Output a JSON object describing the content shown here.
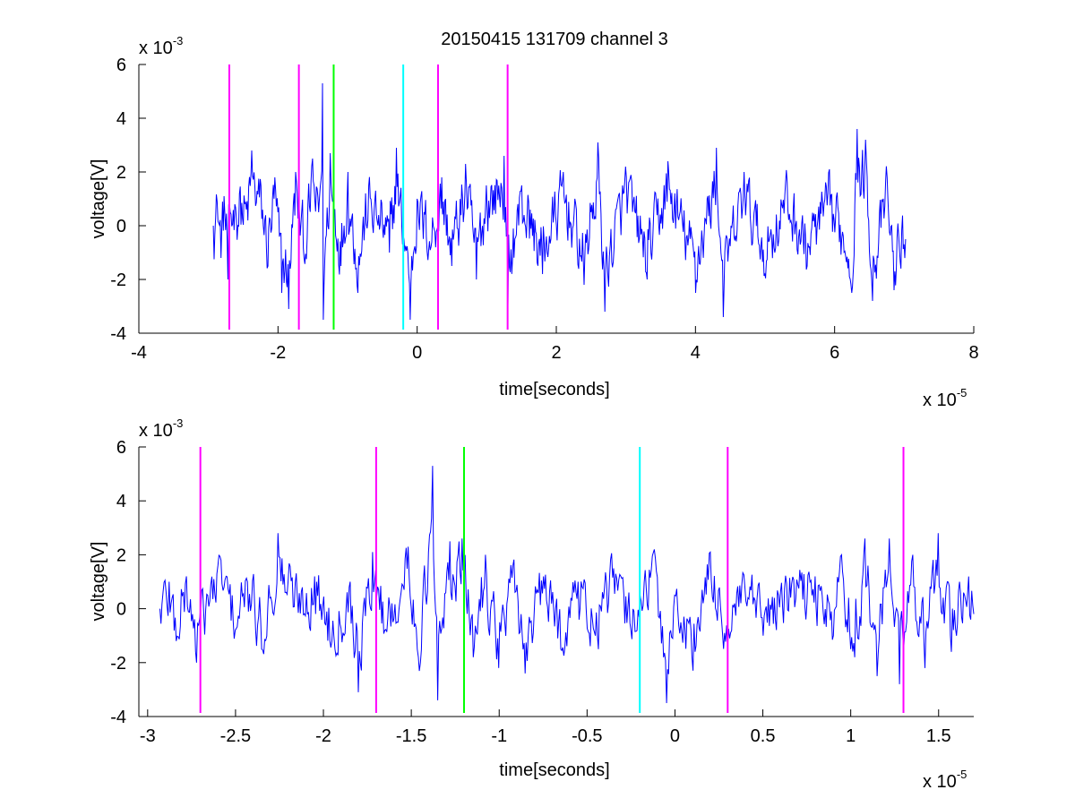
{
  "title": "20150415 131709 channel 3",
  "chart_data": [
    {
      "type": "line",
      "xlabel": "time[seconds]",
      "ylabel": "voltage[V]",
      "xlim": [
        -4,
        8
      ],
      "ylim": [
        -4,
        6
      ],
      "x_multiplier": "x 10",
      "x_exponent": "-5",
      "y_multiplier": "x 10",
      "y_exponent": "-3",
      "xticks": [
        -4,
        -2,
        0,
        2,
        4,
        6,
        8
      ],
      "xtick_labels": [
        "-4",
        "-2",
        "0",
        "2",
        "4",
        "6",
        "8"
      ],
      "yticks": [
        -4,
        -2,
        0,
        2,
        4,
        6
      ],
      "ytick_labels": [
        "-4",
        "-2",
        "0",
        "2",
        "4",
        "6"
      ],
      "series_color": "#0000ff",
      "series_x_range": [
        -2.93,
        7.02
      ],
      "series_keypoints": [
        [
          -2.93,
          0.0
        ],
        [
          -2.87,
          0.9
        ],
        [
          -2.82,
          -1.2
        ],
        [
          -2.77,
          1.1
        ],
        [
          -2.72,
          -2.0
        ],
        [
          -2.69,
          0.5
        ],
        [
          -2.62,
          0.8
        ],
        [
          -2.55,
          1.2
        ],
        [
          -2.45,
          0.6
        ],
        [
          -2.38,
          2.8
        ],
        [
          -2.25,
          1.5
        ],
        [
          -2.15,
          -1.5
        ],
        [
          -2.05,
          1.8
        ],
        [
          -1.95,
          -2.5
        ],
        [
          -1.85,
          -3.1
        ],
        [
          -1.75,
          2.0
        ],
        [
          -1.62,
          -1.2
        ],
        [
          -1.5,
          2.5
        ],
        [
          -1.42,
          0.5
        ],
        [
          -1.36,
          5.3
        ],
        [
          -1.35,
          -3.5
        ],
        [
          -1.25,
          2.7
        ],
        [
          -1.1,
          -1.5
        ],
        [
          -1.0,
          2.0
        ],
        [
          -0.85,
          -2.5
        ],
        [
          -0.7,
          1.5
        ],
        [
          -0.55,
          0.4
        ],
        [
          -0.4,
          -1.0
        ],
        [
          -0.3,
          2.9
        ],
        [
          -0.1,
          -3.5
        ],
        [
          0.0,
          1.0
        ],
        [
          0.2,
          -0.8
        ],
        [
          0.35,
          1.8
        ],
        [
          0.5,
          -1.5
        ],
        [
          0.7,
          2.3
        ],
        [
          0.85,
          -2.0
        ],
        [
          1.0,
          1.5
        ],
        [
          1.25,
          2.6
        ],
        [
          1.3,
          -3.0
        ],
        [
          1.5,
          1.5
        ],
        [
          1.8,
          -1.8
        ],
        [
          2.1,
          2.0
        ],
        [
          2.4,
          -2.2
        ],
        [
          2.6,
          3.1
        ],
        [
          2.7,
          -3.2
        ],
        [
          3.0,
          2.2
        ],
        [
          3.3,
          -2.0
        ],
        [
          3.6,
          2.4
        ],
        [
          4.0,
          -2.5
        ],
        [
          4.3,
          2.9
        ],
        [
          4.4,
          -3.4
        ],
        [
          4.7,
          2.0
        ],
        [
          5.0,
          -1.8
        ],
        [
          5.3,
          1.6
        ],
        [
          5.6,
          -1.5
        ],
        [
          5.9,
          1.2
        ],
        [
          6.1,
          -0.5
        ],
        [
          6.25,
          -2.5
        ],
        [
          6.32,
          3.6
        ],
        [
          6.45,
          3.2
        ],
        [
          6.55,
          -2.8
        ],
        [
          6.75,
          1.8
        ],
        [
          6.85,
          -2.4
        ],
        [
          7.02,
          -0.5
        ]
      ],
      "markers": [
        {
          "x": -2.7,
          "color": "#ff00ff"
        },
        {
          "x": -1.7,
          "color": "#ff00ff"
        },
        {
          "x": -1.2,
          "color": "#00ff00"
        },
        {
          "x": -0.2,
          "color": "#00ffff"
        },
        {
          "x": 0.3,
          "color": "#ff00ff"
        },
        {
          "x": 1.3,
          "color": "#ff00ff"
        }
      ]
    },
    {
      "type": "line",
      "xlabel": "time[seconds]",
      "ylabel": "voltage[V]",
      "xlim": [
        -3.05,
        1.7
      ],
      "ylim": [
        -4,
        6
      ],
      "x_multiplier": "x 10",
      "x_exponent": "-5",
      "y_multiplier": "x 10",
      "y_exponent": "-3",
      "xticks": [
        -3,
        -2.5,
        -2,
        -1.5,
        -1,
        -0.5,
        0,
        0.5,
        1,
        1.5
      ],
      "xtick_labels": [
        "-3",
        "-2.5",
        "-2",
        "-1.5",
        "-1",
        "-0.5",
        "0",
        "0.5",
        "1",
        "1.5"
      ],
      "yticks": [
        -4,
        -2,
        0,
        2,
        4,
        6
      ],
      "ytick_labels": [
        "-4",
        "-2",
        "0",
        "2",
        "4",
        "6"
      ],
      "series_color": "#0000ff",
      "series_x_range": [
        -2.93,
        1.7
      ],
      "series_keypoints": [
        [
          -2.93,
          0.0
        ],
        [
          -2.88,
          1.0
        ],
        [
          -2.84,
          -1.2
        ],
        [
          -2.78,
          1.2
        ],
        [
          -2.72,
          -2.0
        ],
        [
          -2.66,
          0.5
        ],
        [
          -2.58,
          1.8
        ],
        [
          -2.5,
          -0.8
        ],
        [
          -2.43,
          1.0
        ],
        [
          -2.35,
          -1.5
        ],
        [
          -2.26,
          2.8
        ],
        [
          -2.15,
          0.5
        ],
        [
          -2.05,
          1.2
        ],
        [
          -1.95,
          -1.2
        ],
        [
          -1.85,
          1.0
        ],
        [
          -1.8,
          -3.1
        ],
        [
          -1.72,
          2.1
        ],
        [
          -1.65,
          -0.8
        ],
        [
          -1.52,
          2.3
        ],
        [
          -1.45,
          -2.0
        ],
        [
          -1.38,
          5.3
        ],
        [
          -1.35,
          -3.4
        ],
        [
          -1.28,
          2.5
        ],
        [
          -1.21,
          2.6
        ],
        [
          -1.15,
          -1.8
        ],
        [
          -1.08,
          2.0
        ],
        [
          -1.0,
          -2.2
        ],
        [
          -0.92,
          1.6
        ],
        [
          -0.85,
          -2.4
        ],
        [
          -0.75,
          1.2
        ],
        [
          -0.65,
          -1.5
        ],
        [
          -0.55,
          1.0
        ],
        [
          -0.45,
          -1.0
        ],
        [
          -0.35,
          1.5
        ],
        [
          -0.25,
          -0.8
        ],
        [
          -0.2,
          0.5
        ],
        [
          -0.12,
          2.2
        ],
        [
          -0.05,
          -3.5
        ],
        [
          0.0,
          0.5
        ],
        [
          0.1,
          -2.3
        ],
        [
          0.2,
          2.1
        ],
        [
          0.3,
          -1.4
        ],
        [
          0.4,
          0.8
        ],
        [
          0.5,
          -1.0
        ],
        [
          0.6,
          0.6
        ],
        [
          0.7,
          0.9
        ],
        [
          0.8,
          1.2
        ],
        [
          0.9,
          -1.0
        ],
        [
          0.95,
          2.0
        ],
        [
          1.02,
          -1.8
        ],
        [
          1.08,
          2.6
        ],
        [
          1.15,
          -2.5
        ],
        [
          1.22,
          2.6
        ],
        [
          1.28,
          -2.8
        ],
        [
          1.35,
          2.0
        ],
        [
          1.42,
          -2.2
        ],
        [
          1.5,
          2.8
        ],
        [
          1.57,
          -1.6
        ],
        [
          1.62,
          1.0
        ],
        [
          1.7,
          -0.2
        ]
      ],
      "markers": [
        {
          "x": -2.7,
          "color": "#ff00ff"
        },
        {
          "x": -1.7,
          "color": "#ff00ff"
        },
        {
          "x": -1.2,
          "color": "#00ff00"
        },
        {
          "x": -0.2,
          "color": "#00ffff"
        },
        {
          "x": 0.3,
          "color": "#ff00ff"
        },
        {
          "x": 1.3,
          "color": "#ff00ff"
        }
      ]
    }
  ]
}
